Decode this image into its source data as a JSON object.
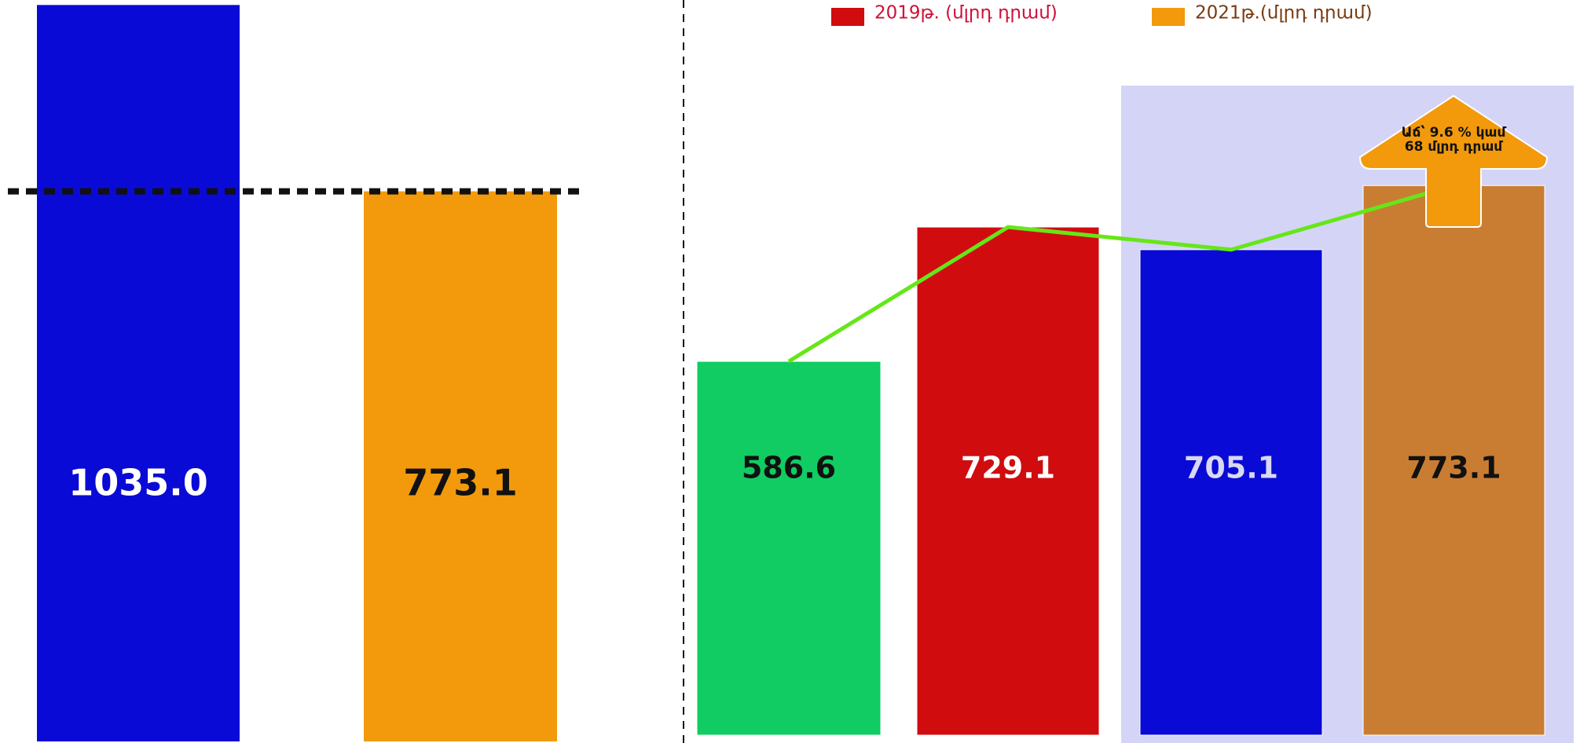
{
  "chart_data": [
    {
      "type": "bar",
      "values": [
        1035,
        773.1
      ],
      "value_labels": [
        "1035.0",
        "773.1"
      ],
      "colors": [
        "#0a0ad6",
        "#f29a0c"
      ],
      "label_colors": [
        "#ffffff",
        "#111111"
      ],
      "ylim": [
        0,
        1042
      ]
    },
    {
      "type": "bar",
      "values": [
        586.6,
        729.1,
        705.1,
        773.1
      ],
      "colors": [
        "#10cc62",
        "#d00c0f",
        "#0a0ad6",
        "#c97d32"
      ],
      "label_colors": [
        "#111111",
        "#ffffff",
        "#d8d8f4",
        "#111111"
      ],
      "line_color": "#66e619",
      "ylim": [
        190,
        970
      ],
      "legend": [
        {
          "name": "2019թ. (մլրդ դրամ)",
          "color": "#d00c0f",
          "text_color": "#d0103a"
        },
        {
          "name": "2021թ.(մլրդ դրամ)",
          "color": "#f29a0c",
          "text_color": "#7a3a10"
        }
      ],
      "annotation": "Աճ՝ 9.6 % կամ 68 մլրդ դրամ"
    }
  ]
}
